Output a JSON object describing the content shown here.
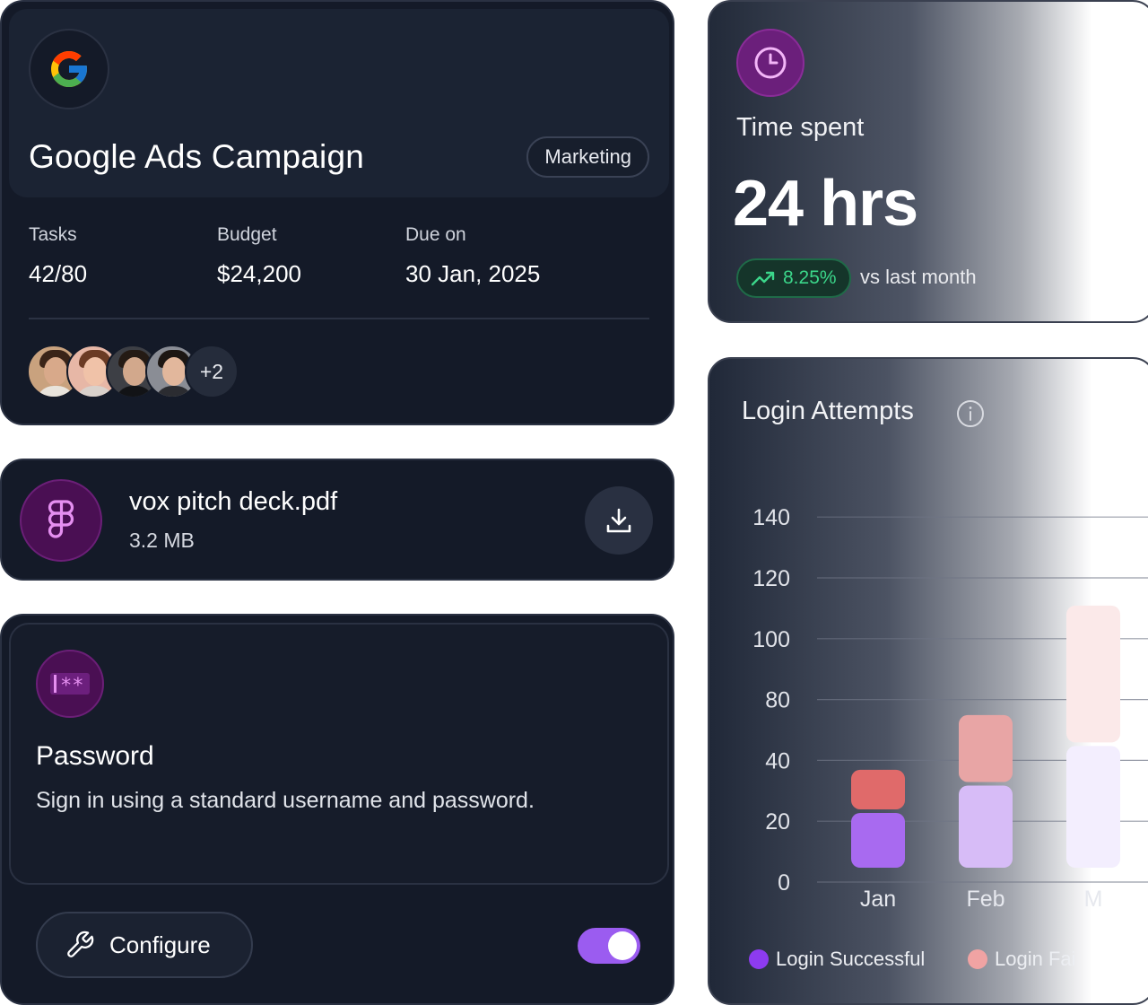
{
  "campaign": {
    "title": "Google Ads Campaign",
    "tag": "Marketing",
    "tasks_label": "Tasks",
    "tasks_value": "42/80",
    "budget_label": "Budget",
    "budget_value": "$24,200",
    "due_label": "Due on",
    "due_value": "30 Jan, 2025",
    "extra_members": "+2",
    "logo_icon": "google-g-icon"
  },
  "file": {
    "name": "vox pitch deck.pdf",
    "size": "3.2 MB",
    "icon": "figma-icon",
    "action_icon": "download-icon"
  },
  "password": {
    "title": "Password",
    "description": "Sign in using a standard username and password.",
    "configure_label": "Configure",
    "toggle_on": true,
    "icon": "password-field-icon"
  },
  "time": {
    "label": "Time spent",
    "value": "24 hrs",
    "change": "8.25%",
    "comparison": "vs last month",
    "icon": "clock-icon",
    "trend_icon": "trending-up-icon"
  },
  "chart_data": {
    "type": "bar",
    "title": "Login Attempts",
    "categories": [
      "Jan",
      "Feb",
      "M"
    ],
    "y_ticks": [
      "0",
      "20",
      "40",
      "80",
      "100",
      "120",
      "140"
    ],
    "series": [
      {
        "name": "Login Successful",
        "color": "#a86af0",
        "values": [
          18,
          27,
          40
        ]
      },
      {
        "name": "Login Fai",
        "color": "#e06a6a",
        "values": [
          13,
          22,
          45
        ]
      }
    ],
    "stacked": true,
    "grid": true,
    "legend": "bottom"
  },
  "colors": {
    "card_bg": "#141a28",
    "accent_purple": "#9b5cf0",
    "positive_green": "#3bd68a",
    "icon_bg": "#4a0f53"
  }
}
